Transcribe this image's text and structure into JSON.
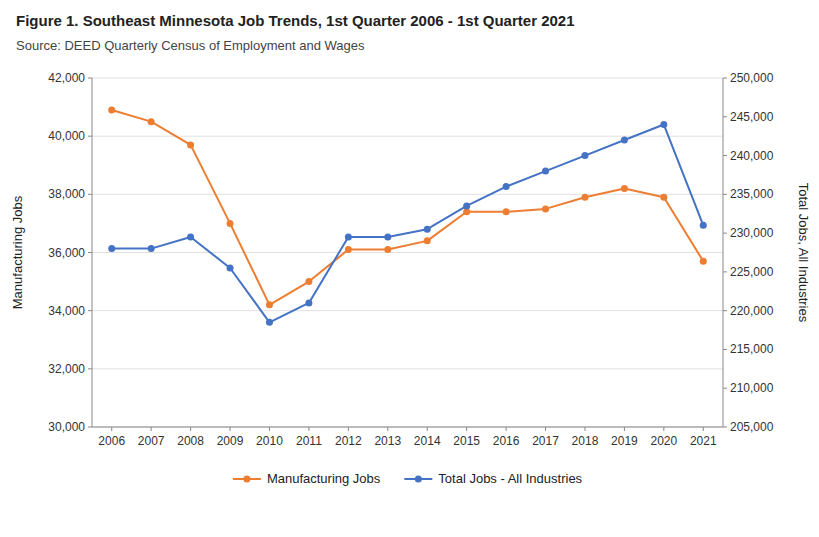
{
  "chart_data": {
    "type": "line",
    "title": "Figure 1. Southeast Minnesota Job Trends, 1st Quarter 2006 - 1st Quarter 2021",
    "subtitle": "Source: DEED Quarterly Census of Employment and Wages",
    "x": [
      2006,
      2007,
      2008,
      2009,
      2010,
      2011,
      2012,
      2013,
      2014,
      2015,
      2016,
      2017,
      2018,
      2019,
      2020,
      2021
    ],
    "xlim": [
      2005.5,
      2021.5
    ],
    "xticks": [
      2006,
      2007,
      2008,
      2009,
      2010,
      2011,
      2012,
      2013,
      2014,
      2015,
      2016,
      2017,
      2018,
      2019,
      2020,
      2021
    ],
    "ylabel": "Manufacturing Jobs",
    "y2label": "Total Jobs, All Industries",
    "ylim": [
      30000,
      42000
    ],
    "yticks": [
      {
        "value": 30000,
        "label": "30,000"
      },
      {
        "value": 32000,
        "label": "32,000"
      },
      {
        "value": 34000,
        "label": "34,000"
      },
      {
        "value": 36000,
        "label": "36,000"
      },
      {
        "value": 38000,
        "label": "38,000"
      },
      {
        "value": 40000,
        "label": "40,000"
      },
      {
        "value": 42000,
        "label": "42,000"
      }
    ],
    "y2lim": [
      205000,
      250000
    ],
    "y2ticks": [
      {
        "value": 205000,
        "label": "205,000"
      },
      {
        "value": 210000,
        "label": "210,000"
      },
      {
        "value": 215000,
        "label": "215,000"
      },
      {
        "value": 220000,
        "label": "220,000"
      },
      {
        "value": 225000,
        "label": "225,000"
      },
      {
        "value": 230000,
        "label": "230,000"
      },
      {
        "value": 235000,
        "label": "235,000"
      },
      {
        "value": 240000,
        "label": "240,000"
      },
      {
        "value": 245000,
        "label": "245,000"
      },
      {
        "value": 250000,
        "label": "250,000"
      }
    ],
    "grid": true,
    "legend": "bottom",
    "series": [
      {
        "name": "Manufacturing Jobs",
        "color": "#ED7D31",
        "marker": "circle",
        "axis": "y",
        "values": [
          40900,
          40500,
          39700,
          37000,
          34200,
          35000,
          36100,
          36100,
          36400,
          37400,
          37400,
          37500,
          37900,
          38200,
          37900,
          35700
        ]
      },
      {
        "name": "Total Jobs - All Industries",
        "color": "#4472C4",
        "marker": "circle",
        "axis": "y2",
        "values": [
          228000,
          228000,
          229500,
          225500,
          218500,
          221000,
          229500,
          229500,
          230500,
          233500,
          236000,
          238000,
          240000,
          242000,
          244000,
          231000
        ]
      }
    ]
  }
}
